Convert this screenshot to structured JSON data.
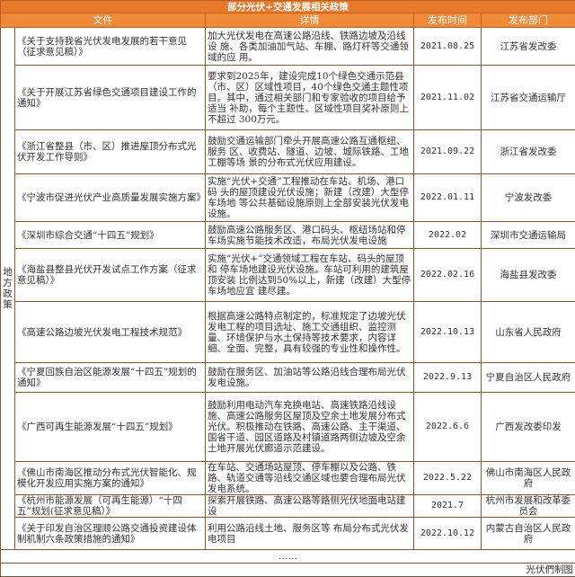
{
  "title": "部分光伏+交通发展相关政策",
  "headers": [
    "文件",
    "详情",
    "发布时间",
    "发布部门"
  ],
  "category": "地方政策",
  "rows": [
    {
      "file": "《关于支持我省光伏发电发展的若干意见（征求意见稿）》",
      "detail": "加大光伏发电在高速公路沿线、铁路边坡及沿线设 施、各类加油加气站、车棚、路灯杆等交通领域的应 用。",
      "date": "2021.08.25",
      "dept": "江苏省发改委"
    },
    {
      "file": "《关于开展江苏省绿色交通项目建设工作的通知》",
      "detail": "要求到2025年，建设完成10个绿色交通示范县（市、区）区域性项目，40个绿色交通主题性项 目。其中，通过相关部门和专家验收的项目给予适当 补助，每个主题性、区域性项目奖补原则上不超过 300万元。",
      "date": "2021.11.02",
      "dept": "江苏省交通运输厅"
    },
    {
      "file": "《浙江省整县（市、区）推进屋顶分布式光伏开发工作导则》",
      "detail": "鼓励交通运输部门牵头开展高速公路互通枢纽、服务 区、收费站、隧道、边坡、城际铁路、工地工棚等场 景的分布式光伏应用建设。",
      "date": "2021.09.22",
      "dept": "浙江省发改委"
    },
    {
      "file": "《宁波市促进光伏产业高质量发展实施方案》",
      "detail": "实施“光伏+交通”工程推动在车站、机场、港口码 头的屋顶建设光伏设施；新建（改建）大型停车场地 等公共基础设施原则上全部安装光伏发电设施。",
      "date": "2022.01.11",
      "dept": "宁波发改委"
    },
    {
      "file": "《深圳市综合交通“十四五”规划》",
      "detail": "鼓励高速公路服务区、港口码头、枢纽场站和停车场实施节能技术改造，布局光伏发电设施",
      "date": "2022.02",
      "dept": "深圳市交通运输局"
    },
    {
      "file": "《海盐县整县光伏开发试点工作方案（征求意见稿）》",
      "detail": "实施“光伏+”交通领域工程在车站、码头的屋顶和 停车场地建设光伏设施。车站可利用的建筑屋顶安装 比例达到50%以上，新建（改建）大型停车场地应宜 建尽建。",
      "date": "2022.02.16",
      "dept": "海盐县发改委"
    },
    {
      "file": "《高速公路边坡光伏发电工程技术规范》",
      "detail": "根据高速公路特点制定的，标准规定了边坡光伏发电工程的项目选址、施工交通组织、监控测量、环境保护与水土保持等技术要求，内容详细、全面、完整，具有较强的专业性和操作性。",
      "date": "2022.10.13",
      "dept": "山东省人民政府"
    },
    {
      "file": "《宁夏回族自治区能源发展“十四五”规划的通知》",
      "detail": "鼓励在服务区、加油站等公路沿线合理布局光伏发电设施。",
      "date": "2022.9.13",
      "dept": "宁夏自治区人民政府"
    },
    {
      "file": "《广西可再生能源发展“十四五”规划》",
      "detail": "鼓励利用电动汽车充换电站、高速铁路沿线设施、高速公路服务区屋顶及空余土地发展分布式光伏。积极推动在铁路、高速公路、主干渠道、国省干道、园区道路及村镇道路两侧边坡及空余土地开展光伏廊道示范建设。",
      "date": "2022.6.6",
      "dept": "广西发改委印发"
    },
    {
      "file": "《佛山市南海区推动分布式光伏智能化、规模化开发应用实施方案的通知》",
      "detail": "在车站、交通场站屋顶、停车棚以及公路、铁路、轨道交通等沿线交通区域也要合理布局光伏发电系统。",
      "date": "2022.5.22",
      "dept": "佛山市南海区人民政府"
    },
    {
      "file": "《杭州市能源发展（可再生能源）“十四五”规划(征求意见稿）》",
      "detail": "探索开展铁路、高速公路等路侧光伏地面电站建设",
      "date": "2021.7",
      "dept": "杭州市发展和改革委员会"
    },
    {
      "file": "《关于印发自治区理顺公路交通投资建设体制机制六条政策措施的通知》",
      "detail": "利用公路沿线土地、服务区等 布局分布式光伏发电项目",
      "date": "2022.10.12",
      "dept": "内蒙古自治区人民政府"
    }
  ],
  "ellipsis": "……",
  "footer": "光伏們制图",
  "colors": {
    "title_bg": "#e8782a",
    "header_bg": "#f08a38"
  }
}
